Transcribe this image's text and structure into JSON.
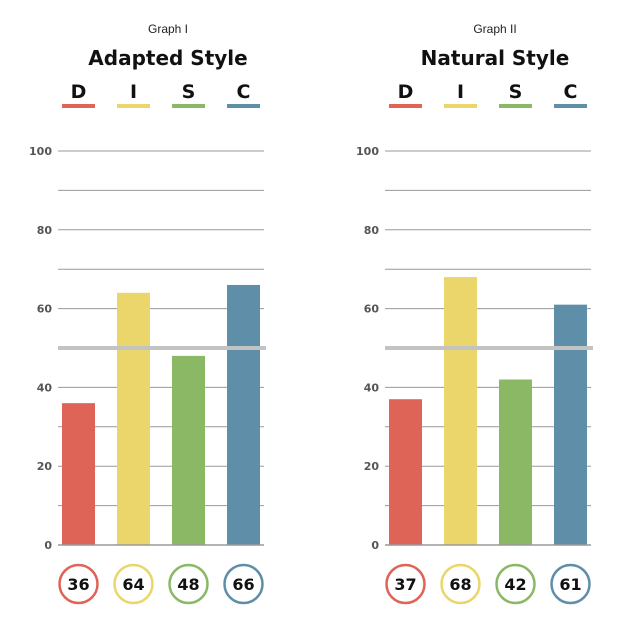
{
  "chart_data": [
    {
      "type": "bar",
      "graph_label": "Graph I",
      "title": "Adapted Style",
      "categories": [
        "D",
        "I",
        "S",
        "C"
      ],
      "values": [
        36,
        64,
        48,
        66
      ],
      "score_labels": [
        "36",
        "64",
        "48",
        "66"
      ],
      "colors": [
        "#de6457",
        "#ead66a",
        "#8ab865",
        "#5f8ea9"
      ],
      "ylim": [
        0,
        100
      ],
      "yticks": [
        0,
        20,
        40,
        60,
        80,
        100
      ],
      "ytick_labels": [
        "0",
        "20",
        "40",
        "60",
        "80",
        "100"
      ],
      "midline": 50,
      "grid": true
    },
    {
      "type": "bar",
      "graph_label": "Graph II",
      "title": "Natural Style",
      "categories": [
        "D",
        "I",
        "S",
        "C"
      ],
      "values": [
        37,
        68,
        42,
        61
      ],
      "score_labels": [
        "37",
        "68",
        "42",
        "61"
      ],
      "colors": [
        "#de6457",
        "#ead66a",
        "#8ab865",
        "#5f8ea9"
      ],
      "ylim": [
        0,
        100
      ],
      "yticks": [
        0,
        20,
        40,
        60,
        80,
        100
      ],
      "ytick_labels": [
        "0",
        "20",
        "40",
        "60",
        "80",
        "100"
      ],
      "midline": 50,
      "grid": true
    }
  ]
}
